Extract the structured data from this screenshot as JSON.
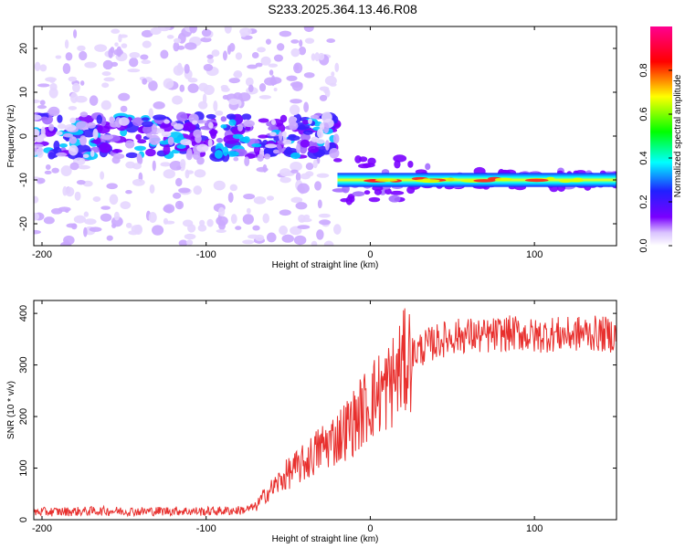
{
  "title": "S233.2025.364.13.46.R08",
  "colors": {
    "line": "#e8302e",
    "frame": "#000000",
    "background": "#ffffff"
  },
  "chart_data": [
    {
      "type": "heatmap",
      "title": "S233.2025.364.13.46.R08",
      "xlabel": "Height of straight line (km)",
      "ylabel": "Frequency (Hz)",
      "xlim": [
        -205,
        150
      ],
      "ylim": [
        -25,
        25
      ],
      "x_ticks": [
        -200,
        -100,
        0,
        100
      ],
      "y_ticks": [
        -20,
        -10,
        0,
        10,
        20
      ],
      "colorbar": {
        "label": "Normalized spectral amplitude",
        "range": [
          0.0,
          1.0
        ],
        "ticks": [
          0.0,
          0.2,
          0.4,
          0.6,
          0.8
        ],
        "tick_labels": [
          "0.0",
          "0.2",
          "0.4",
          "0.6",
          "0.8"
        ],
        "colormap": [
          "#ffffff",
          "#7a00ff",
          "#2020ff",
          "#00ffff",
          "#00ff00",
          "#ffff00",
          "#ff0000",
          "#ff00a0"
        ]
      },
      "features": [
        {
          "name": "noise band",
          "x_range": [
            -205,
            -20
          ],
          "freq_center": 0,
          "freq_halfwidth": 4,
          "amplitude": 0.2
        },
        {
          "name": "diffuse noise",
          "x_range": [
            -205,
            -20
          ],
          "freq_range": [
            -25,
            25
          ],
          "amplitude": 0.05
        },
        {
          "name": "carrier",
          "x_range": [
            -20,
            150
          ],
          "freq_center": -10,
          "freq_halfwidth": 1,
          "amplitude": 0.8
        }
      ]
    },
    {
      "type": "line",
      "xlabel": "Height of straight line (km)",
      "ylabel": "SNR (10 * v/v)",
      "xlim": [
        -205,
        150
      ],
      "ylim": [
        0,
        425
      ],
      "x_ticks": [
        -200,
        -100,
        0,
        100
      ],
      "y_ticks": [
        0,
        100,
        200,
        300,
        400
      ],
      "series": [
        {
          "name": "SNR",
          "x": [
            -205,
            -180,
            -160,
            -140,
            -120,
            -100,
            -80,
            -75,
            -70,
            -65,
            -60,
            -55,
            -50,
            -45,
            -40,
            -35,
            -30,
            -25,
            -20,
            -15,
            -10,
            -5,
            0,
            5,
            10,
            15,
            20,
            25,
            30,
            40,
            50,
            60,
            70,
            80,
            90,
            100,
            110,
            120,
            130,
            140,
            150
          ],
          "values": [
            15,
            16,
            17,
            16,
            17,
            16,
            18,
            20,
            25,
            45,
            60,
            75,
            90,
            100,
            110,
            125,
            140,
            150,
            160,
            175,
            190,
            210,
            230,
            245,
            255,
            275,
            300,
            320,
            330,
            345,
            355,
            358,
            355,
            360,
            362,
            355,
            360,
            358,
            362,
            360,
            358
          ]
        }
      ]
    }
  ]
}
